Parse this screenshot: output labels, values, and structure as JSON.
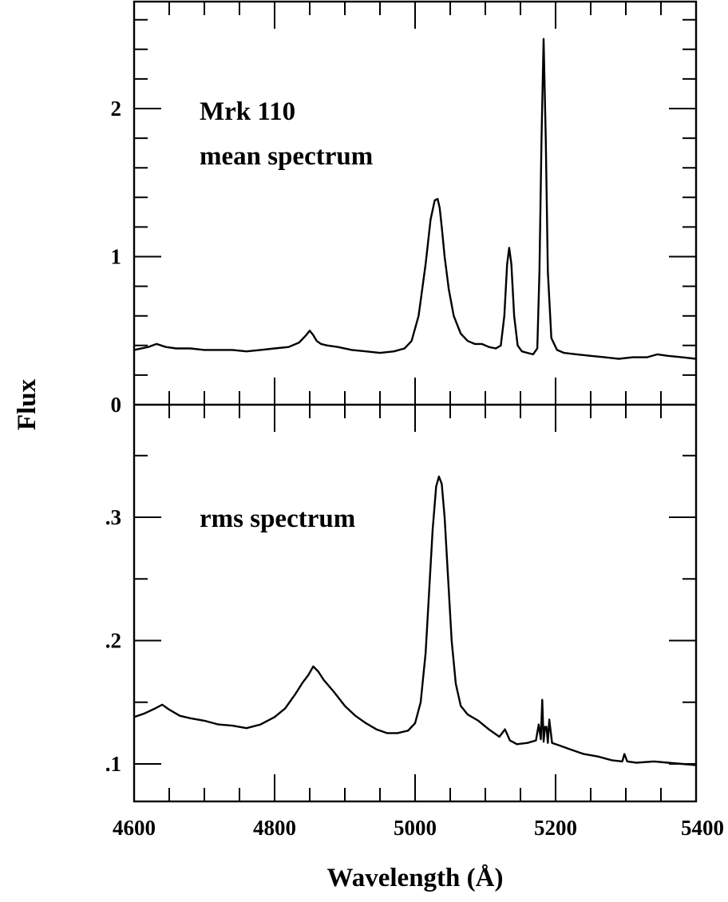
{
  "chart_data": [
    {
      "type": "line",
      "panel": "top",
      "label_lines": [
        "Mrk 110",
        "mean spectrum"
      ],
      "ylabel": "Flux",
      "xlim": [
        4600,
        5400
      ],
      "ylim": [
        0,
        2.7
      ],
      "yticks": [
        0,
        1,
        2
      ],
      "ytick_labels": [
        "0",
        "1",
        "2"
      ],
      "series": [
        {
          "x": [
            4600,
            4620,
            4632,
            4645,
            4660,
            4680,
            4700,
            4720,
            4740,
            4760,
            4780,
            4800,
            4820,
            4835,
            4845,
            4850,
            4855,
            4860,
            4866,
            4875,
            4890,
            4910,
            4930,
            4950,
            4970,
            4985,
            4995,
            5005,
            5015,
            5022,
            5028,
            5032,
            5035,
            5038,
            5042,
            5048,
            5055,
            5065,
            5075,
            5085,
            5095,
            5105,
            5115,
            5122,
            5127,
            5131,
            5134,
            5137,
            5141,
            5146,
            5152,
            5160,
            5168,
            5174,
            5177,
            5180,
            5183,
            5186,
            5189,
            5194,
            5202,
            5212,
            5230,
            5250,
            5270,
            5290,
            5310,
            5330,
            5345,
            5360,
            5380,
            5400
          ],
          "y": [
            0.37,
            0.39,
            0.41,
            0.39,
            0.38,
            0.38,
            0.37,
            0.37,
            0.37,
            0.36,
            0.37,
            0.38,
            0.39,
            0.42,
            0.47,
            0.5,
            0.47,
            0.43,
            0.41,
            0.4,
            0.39,
            0.37,
            0.36,
            0.35,
            0.36,
            0.38,
            0.43,
            0.6,
            0.95,
            1.25,
            1.38,
            1.39,
            1.33,
            1.2,
            1.0,
            0.78,
            0.6,
            0.48,
            0.43,
            0.41,
            0.41,
            0.39,
            0.38,
            0.4,
            0.6,
            0.95,
            1.06,
            0.95,
            0.6,
            0.4,
            0.36,
            0.35,
            0.34,
            0.38,
            0.9,
            1.8,
            2.47,
            1.8,
            0.9,
            0.45,
            0.37,
            0.35,
            0.34,
            0.33,
            0.32,
            0.31,
            0.32,
            0.32,
            0.34,
            0.33,
            0.32,
            0.31
          ]
        }
      ]
    },
    {
      "type": "line",
      "panel": "bottom",
      "label_lines": [
        "rms spectrum"
      ],
      "xlabel": "Wavelength (Å)",
      "xlim": [
        4600,
        5400
      ],
      "ylim": [
        0.071,
        0.36
      ],
      "xticks": [
        4600,
        4800,
        5000,
        5200,
        5400
      ],
      "xtick_labels": [
        "4600",
        "4800",
        "5000",
        "5200",
        "5400"
      ],
      "yticks": [
        0.1,
        0.2,
        0.3
      ],
      "ytick_labels": [
        ".1",
        ".2",
        ".3"
      ],
      "series": [
        {
          "x": [
            4600,
            4615,
            4630,
            4640,
            4650,
            4665,
            4680,
            4700,
            4720,
            4740,
            4760,
            4780,
            4800,
            4815,
            4830,
            4840,
            4848,
            4855,
            4862,
            4870,
            4885,
            4900,
            4915,
            4930,
            4945,
            4960,
            4975,
            4990,
            5000,
            5008,
            5015,
            5020,
            5025,
            5030,
            5034,
            5038,
            5042,
            5047,
            5052,
            5058,
            5065,
            5075,
            5090,
            5105,
            5120,
            5128,
            5135,
            5145,
            5160,
            5172,
            5176,
            5179,
            5181,
            5183,
            5185,
            5187,
            5189,
            5191,
            5195,
            5205,
            5220,
            5240,
            5260,
            5280,
            5295,
            5298,
            5302,
            5315,
            5340,
            5360,
            5380,
            5400
          ],
          "y": [
            0.138,
            0.141,
            0.145,
            0.148,
            0.144,
            0.139,
            0.137,
            0.135,
            0.132,
            0.131,
            0.129,
            0.132,
            0.138,
            0.145,
            0.157,
            0.166,
            0.172,
            0.179,
            0.175,
            0.168,
            0.158,
            0.147,
            0.139,
            0.133,
            0.128,
            0.125,
            0.125,
            0.127,
            0.133,
            0.15,
            0.19,
            0.24,
            0.29,
            0.325,
            0.333,
            0.327,
            0.3,
            0.25,
            0.2,
            0.165,
            0.147,
            0.14,
            0.135,
            0.128,
            0.122,
            0.128,
            0.119,
            0.116,
            0.117,
            0.119,
            0.132,
            0.12,
            0.152,
            0.118,
            0.13,
            0.13,
            0.117,
            0.136,
            0.117,
            0.115,
            0.112,
            0.108,
            0.106,
            0.103,
            0.102,
            0.108,
            0.102,
            0.101,
            0.102,
            0.101,
            0.1,
            0.099
          ]
        }
      ]
    }
  ]
}
